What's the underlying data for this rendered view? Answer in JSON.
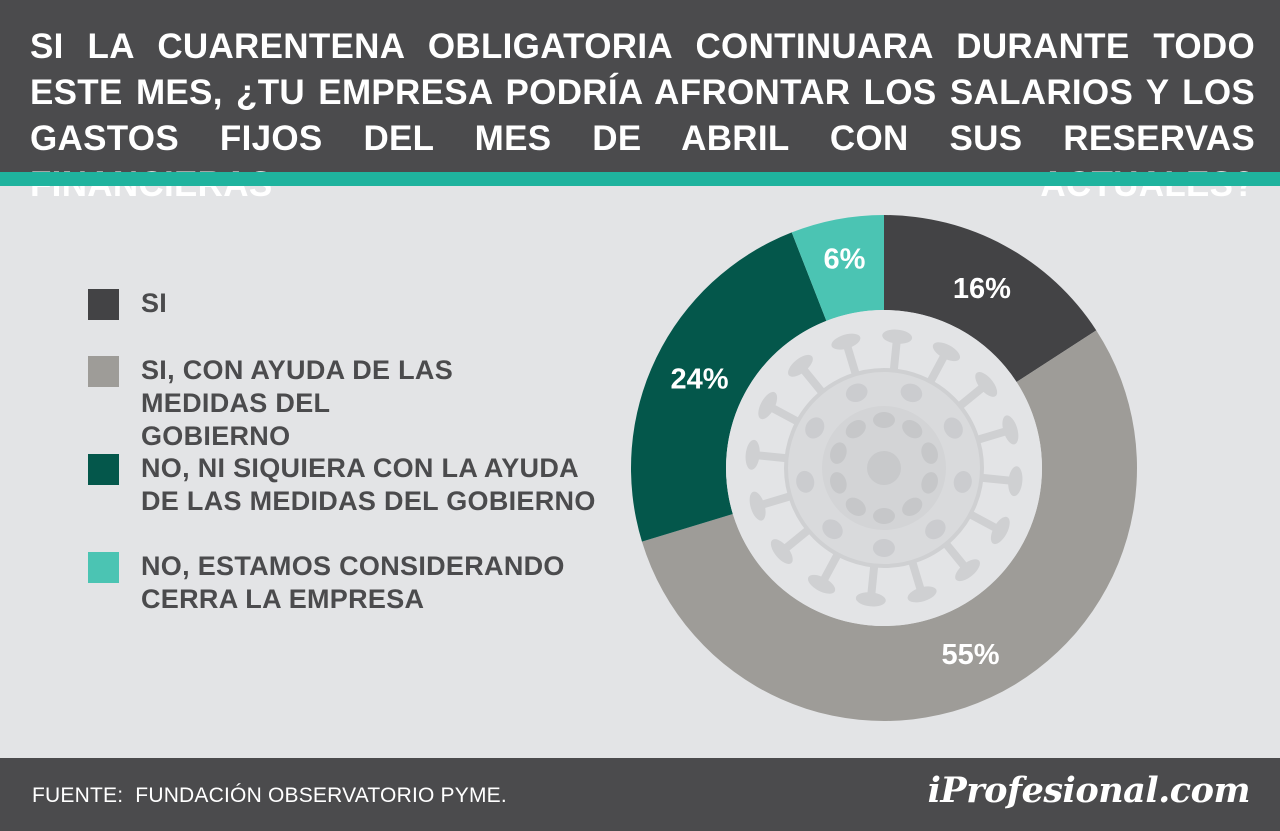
{
  "header": {
    "title": "SI LA CUARENTENA OBLIGATORIA CONTINUARA DURANTE TODO ESTE MES, ¿TU EMPRESA PODRÍA AFRONTAR LOS SALARIOS Y LOS GASTOS FIJOS DEL MES DE ABRIL CON SUS RESERVAS FINANCIERAS ACTUALES?"
  },
  "legend": {
    "items": [
      {
        "label": "SI",
        "color": "#434345"
      },
      {
        "label": "SI, CON AYUDA DE LAS MEDIDAS DEL GOBIERNO",
        "color": "#9e9c98"
      },
      {
        "label": "NO, NI SIQUIERA CON LA AYUDA DE LAS MEDIDAS DEL GOBIERNO",
        "color": "#04574b"
      },
      {
        "label": "NO, ESTAMOS CONSIDERANDO CERRA LA EMPRESA",
        "color": "#4bc4b3"
      }
    ]
  },
  "footer": {
    "source": "FUENTE:  FUNDACIÓN OBSERVATORIO PYME.",
    "brand": "iProfesional.com"
  },
  "colors": {
    "header_bg": "#4b4b4d",
    "accent": "#1fb39e",
    "background": "#e3e4e6"
  },
  "chart_data": {
    "type": "pie",
    "style": "donut",
    "categories": [
      "SI",
      "SI, CON AYUDA DE LAS MEDIDAS DEL GOBIERNO",
      "NO, NI SIQUIERA CON LA AYUDA DE LAS MEDIDAS DEL GOBIERNO",
      "NO, ESTAMOS CONSIDERANDO CERRA LA EMPRESA"
    ],
    "values": [
      16,
      55,
      24,
      6
    ],
    "data_labels": [
      "16%",
      "55%",
      "24%",
      "6%"
    ],
    "colors": [
      "#434345",
      "#9e9c98",
      "#04574b",
      "#4bc4b3"
    ],
    "legend_position": "left",
    "center_image": "virus-icon"
  }
}
